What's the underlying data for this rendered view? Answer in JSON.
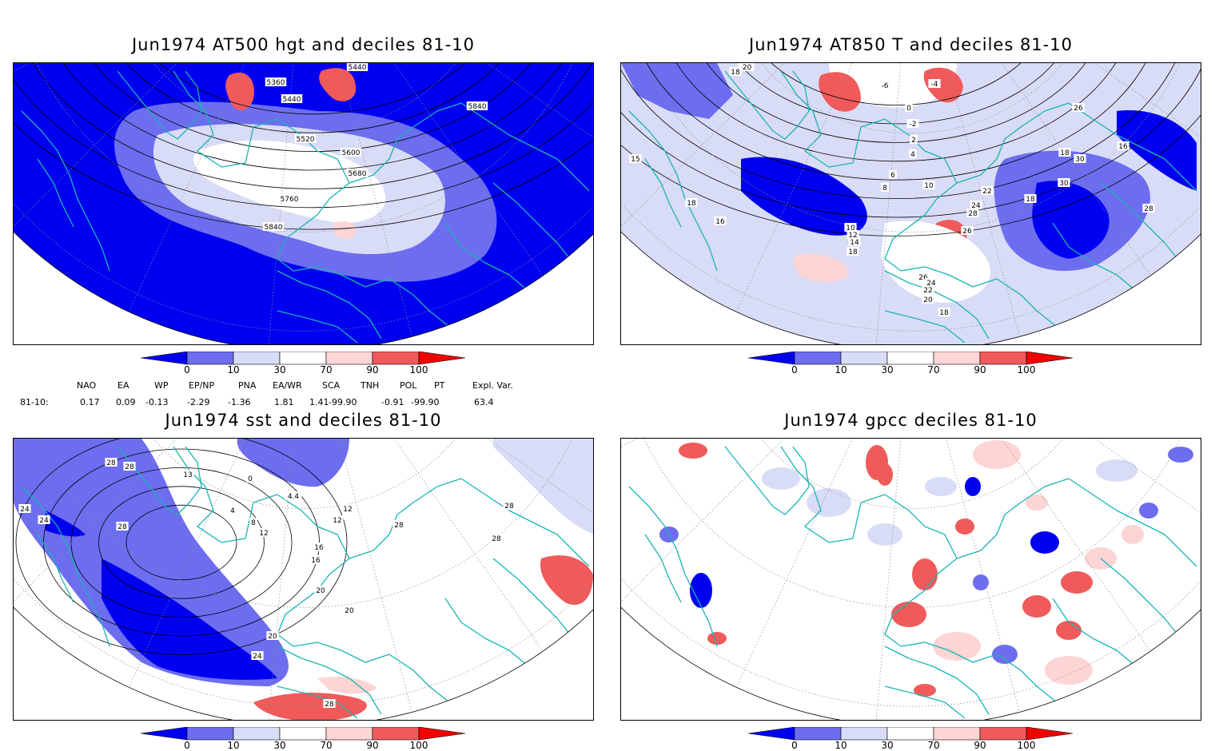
{
  "panels": [
    {
      "title": "Jun1974 AT500 hgt and deciles 81-10",
      "contour_labels": [
        "5360",
        "5440",
        "5440",
        "5520",
        "5600",
        "5680",
        "5760",
        "5840",
        "5840"
      ]
    },
    {
      "title": "Jun1974 AT850 T and deciles 81-10",
      "contour_labels": [
        "-20",
        "18",
        "-6",
        "-4",
        "0",
        "-2",
        "2",
        "4",
        "6",
        "8",
        "10",
        "16",
        "18",
        "10",
        "12",
        "14",
        "18",
        "18",
        "22",
        "24",
        "28",
        "26",
        "26",
        "24",
        "22",
        "20",
        "18",
        "18",
        "26",
        "30",
        "30",
        "28",
        "16",
        "18",
        "15"
      ]
    },
    {
      "title": "Jun1974 sst and deciles 81-10",
      "contour_labels": [
        "24",
        "28",
        "28",
        "28",
        "13",
        "0",
        "4",
        "8",
        "12",
        "16",
        "20",
        "24",
        "20",
        "28",
        "20",
        "28",
        "28",
        "4.4",
        "12",
        "12",
        "16",
        "24",
        "28"
      ]
    },
    {
      "title": "Jun1974 gpcc deciles 81-10",
      "contour_labels": []
    }
  ],
  "colorbar": {
    "ticks": [
      "0",
      "10",
      "30",
      "70",
      "90",
      "100"
    ],
    "colors": [
      "#0000f0",
      "#6d6df0",
      "#d8dcf6",
      "#ffffff",
      "#fdd5d5",
      "#f05a5a",
      "#f00000"
    ]
  },
  "indices": {
    "headers": [
      "NAO",
      "EA",
      "WP",
      "EP/NP",
      "PNA",
      "EA/WR",
      "SCA",
      "TNH",
      "POL",
      "PT",
      "Expl. Var."
    ],
    "row_label": "81-10:",
    "values": [
      "0.17",
      "0.09",
      "-0.13",
      "-2.29",
      "-1.36",
      "1.81",
      "1.41",
      "-99.90",
      "-0.91",
      "-99.90",
      "63.4"
    ]
  },
  "colors": {
    "coast": "#1ab4b4",
    "contour": "#000000",
    "grid": "#8c8c8c"
  }
}
